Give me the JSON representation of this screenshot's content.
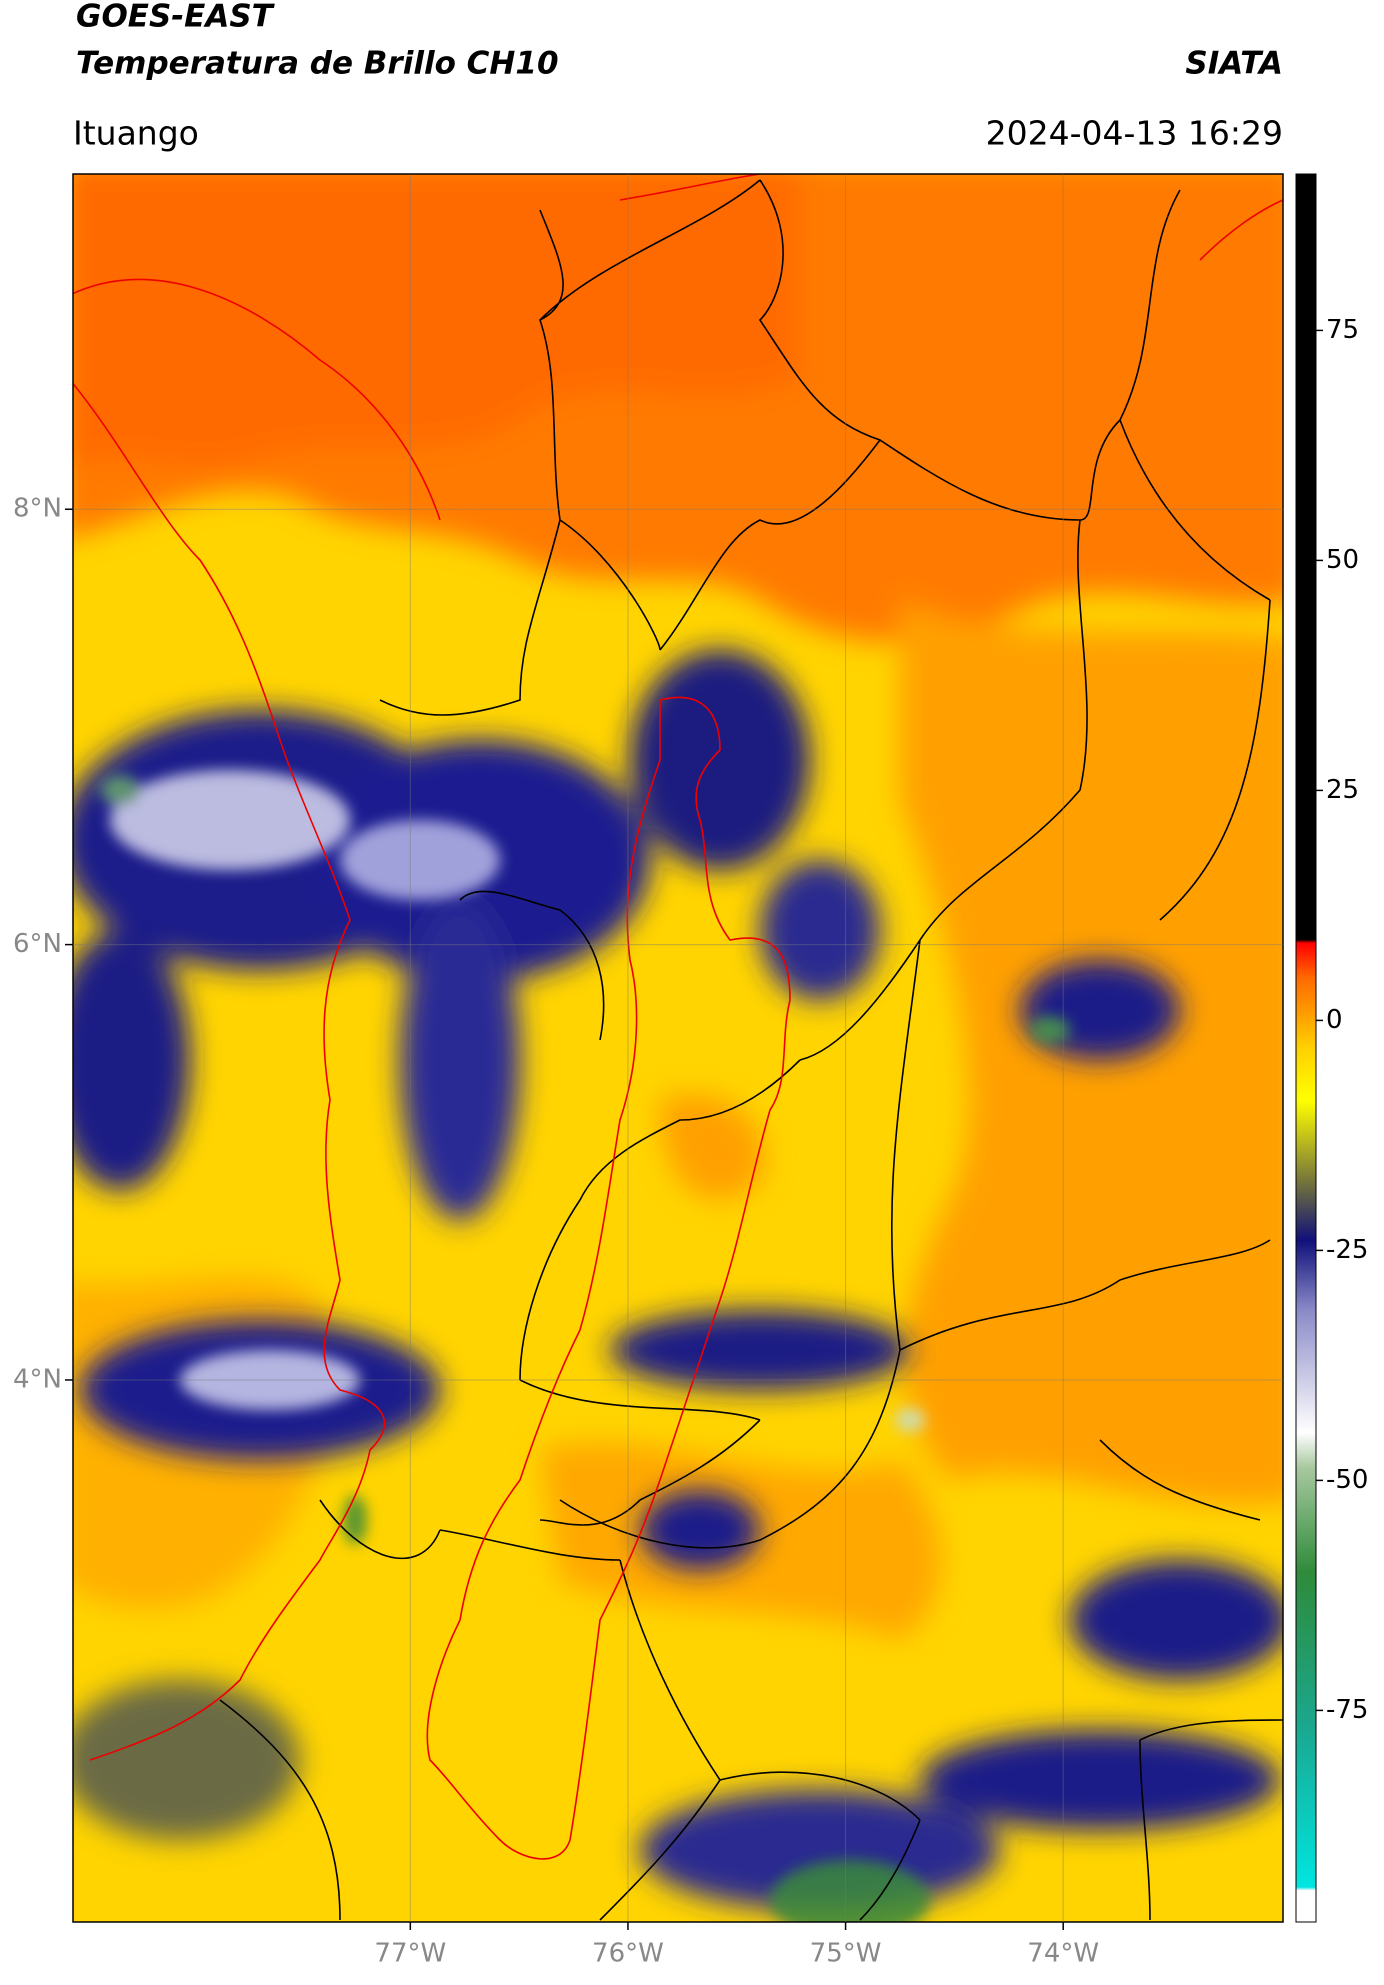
{
  "header": {
    "title_line1": "GOES-EAST",
    "title_line2": "Temperatura de Brillo CH10",
    "brand": "SIATA",
    "location": "Ituango",
    "timestamp": "2024-04-13 16:29"
  },
  "map": {
    "lon_range": [
      -78.55,
      -72.99
    ],
    "lat_range": [
      1.51,
      9.54
    ],
    "lat_ticks": [
      {
        "value": 8,
        "label": "8°N"
      },
      {
        "value": 6,
        "label": "6°N"
      },
      {
        "value": 4,
        "label": "4°N"
      }
    ],
    "lon_ticks": [
      {
        "value": -77,
        "label": "77°W"
      },
      {
        "value": -76,
        "label": "76°W"
      },
      {
        "value": -75,
        "label": "75°W"
      },
      {
        "value": -74,
        "label": "74°W"
      }
    ]
  },
  "colorbar": {
    "range": [
      -98,
      92
    ],
    "ticks": [
      75,
      50,
      25,
      0,
      -25,
      -50,
      -75
    ]
  }
}
